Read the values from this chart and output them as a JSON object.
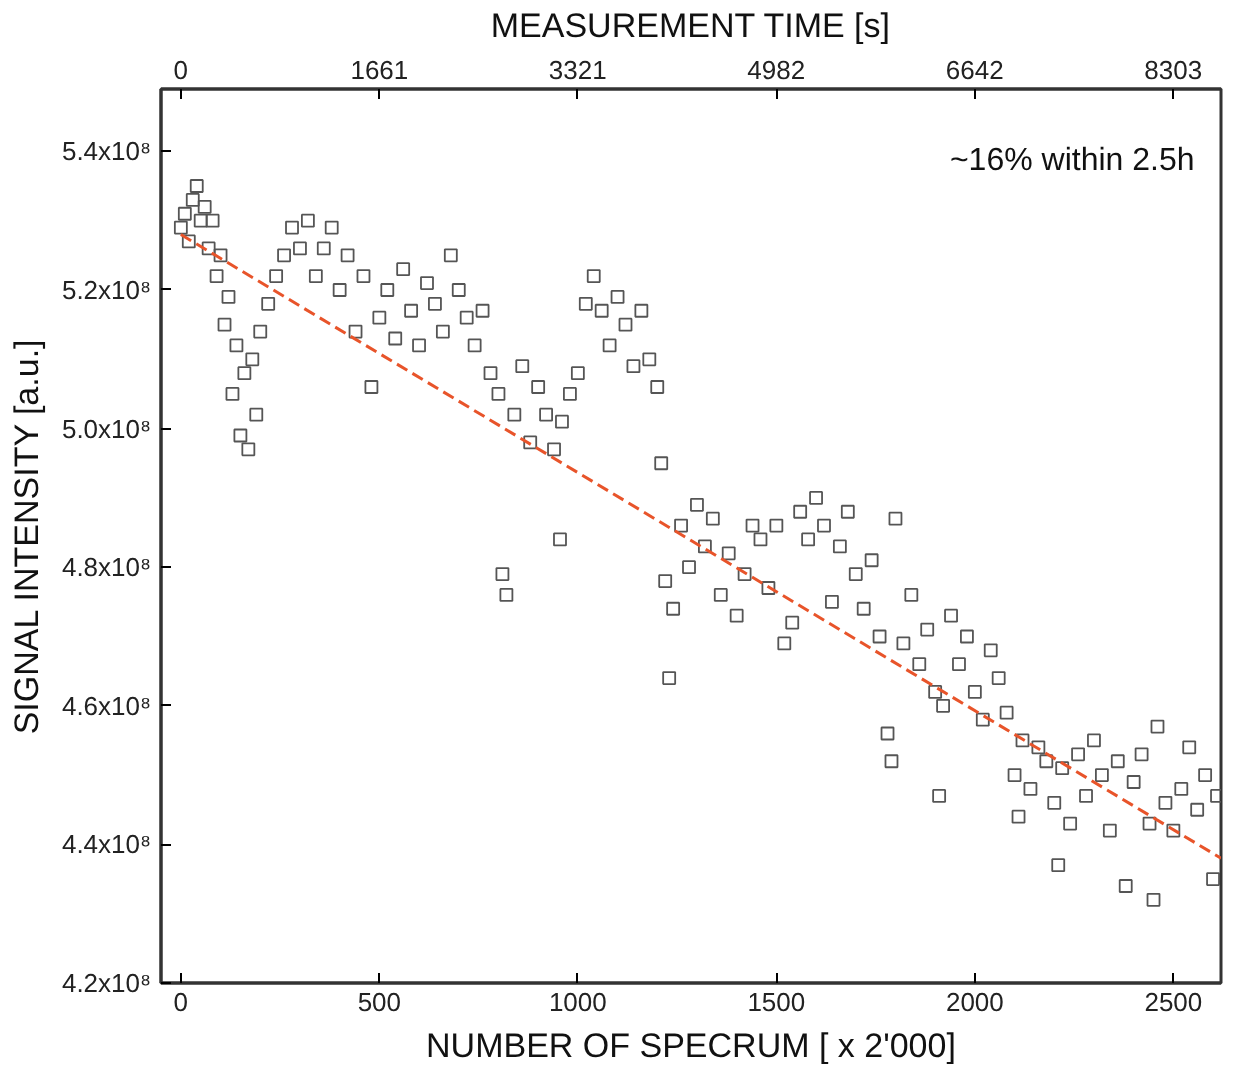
{
  "chart_data": {
    "type": "scatter",
    "xlabel": "NUMBER OF SPECRUM [ x 2'000]",
    "ylabel": "SIGNAL INTENSITY [a.u.]",
    "x2label": "MEASUREMENT TIME [s]",
    "annotations": [
      "~16% within 2.5h"
    ],
    "xlim": [
      -50,
      2620
    ],
    "xticks": [
      0,
      500,
      1000,
      1500,
      2000,
      2500
    ],
    "x2lim": [
      -166,
      8703
    ],
    "x2ticks": [
      0,
      1661,
      3321,
      4982,
      6642,
      8303
    ],
    "ylim": [
      420000000,
      549000000
    ],
    "yticks": [
      {
        "value": 420000000,
        "label": "4.2x10⁸"
      },
      {
        "value": 440000000,
        "label": "4.4x10⁸"
      },
      {
        "value": 460000000,
        "label": "4.6x10⁸"
      },
      {
        "value": 480000000,
        "label": "4.8x10⁸"
      },
      {
        "value": 500000000,
        "label": "5.0x10⁸"
      },
      {
        "value": 520000000,
        "label": "5.2x10⁸"
      },
      {
        "value": 540000000,
        "label": "5.4x10⁸"
      }
    ],
    "grid": false,
    "series": [
      {
        "color": "#555555",
        "marker": "square",
        "x": [
          0,
          10,
          20,
          30,
          40,
          50,
          60,
          70,
          80,
          90,
          100,
          110,
          120,
          130,
          140,
          150,
          160,
          170,
          180,
          190,
          200,
          220,
          240,
          260,
          280,
          300,
          320,
          340,
          360,
          380,
          400,
          420,
          440,
          460,
          480,
          500,
          520,
          540,
          560,
          580,
          600,
          620,
          640,
          660,
          680,
          700,
          720,
          740,
          760,
          780,
          800,
          810,
          820,
          840,
          860,
          880,
          900,
          920,
          940,
          955,
          960,
          980,
          1000,
          1020,
          1040,
          1060,
          1080,
          1100,
          1120,
          1140,
          1160,
          1180,
          1200,
          1210,
          1220,
          1230,
          1240,
          1260,
          1280,
          1300,
          1320,
          1340,
          1360,
          1380,
          1400,
          1420,
          1440,
          1460,
          1480,
          1500,
          1520,
          1540,
          1560,
          1580,
          1600,
          1620,
          1640,
          1660,
          1680,
          1700,
          1720,
          1740,
          1760,
          1780,
          1790,
          1800,
          1820,
          1840,
          1860,
          1880,
          1900,
          1910,
          1920,
          1940,
          1960,
          1980,
          2000,
          2020,
          2040,
          2060,
          2080,
          2100,
          2110,
          2120,
          2140,
          2160,
          2180,
          2200,
          2210,
          2220,
          2240,
          2260,
          2280,
          2300,
          2320,
          2340,
          2360,
          2380,
          2400,
          2420,
          2440,
          2450,
          2460,
          2480,
          2500,
          2520,
          2540,
          2560,
          2580,
          2600,
          2610
        ],
        "values": [
          529000000.0,
          531000000.0,
          527000000.0,
          533000000.0,
          535000000.0,
          530000000.0,
          532000000.0,
          526000000.0,
          530000000.0,
          522000000.0,
          525000000.0,
          515000000.0,
          519000000.0,
          505000000.0,
          512000000.0,
          499000000.0,
          508000000.0,
          497000000.0,
          510000000.0,
          502000000.0,
          514000000.0,
          518000000.0,
          522000000.0,
          525000000.0,
          529000000.0,
          526000000.0,
          530000000.0,
          522000000.0,
          526000000.0,
          529000000.0,
          520000000.0,
          525000000.0,
          514000000.0,
          522000000.0,
          506000000.0,
          516000000.0,
          520000000.0,
          513000000.0,
          523000000.0,
          517000000.0,
          512000000.0,
          521000000.0,
          518000000.0,
          514000000.0,
          525000000.0,
          520000000.0,
          516000000.0,
          512000000.0,
          517000000.0,
          508000000.0,
          505000000.0,
          479000000.0,
          476000000.0,
          502000000.0,
          509000000.0,
          498000000.0,
          506000000.0,
          502000000.0,
          497000000.0,
          484000000.0,
          501000000.0,
          505000000.0,
          508000000.0,
          518000000.0,
          522000000.0,
          517000000.0,
          512000000.0,
          519000000.0,
          515000000.0,
          509000000.0,
          517000000.0,
          510000000.0,
          506000000.0,
          495000000.0,
          478000000.0,
          464000000.0,
          474000000.0,
          486000000.0,
          480000000.0,
          489000000.0,
          483000000.0,
          487000000.0,
          476000000.0,
          482000000.0,
          473000000.0,
          479000000.0,
          486000000.0,
          484000000.0,
          477000000.0,
          486000000.0,
          469000000.0,
          472000000.0,
          488000000.0,
          484000000.0,
          490000000.0,
          486000000.0,
          475000000.0,
          483000000.0,
          488000000.0,
          479000000.0,
          474000000.0,
          481000000.0,
          470000000.0,
          456000000.0,
          452000000.0,
          487000000.0,
          469000000.0,
          476000000.0,
          466000000.0,
          471000000.0,
          462000000.0,
          447000000.0,
          460000000.0,
          473000000.0,
          466000000.0,
          470000000.0,
          462000000.0,
          458000000.0,
          468000000.0,
          464000000.0,
          459000000.0,
          450000000.0,
          444000000.0,
          455000000.0,
          448000000.0,
          454000000.0,
          452000000.0,
          446000000.0,
          437000000.0,
          451000000.0,
          443000000.0,
          453000000.0,
          447000000.0,
          455000000.0,
          450000000.0,
          442000000.0,
          452000000.0,
          434000000.0,
          449000000.0,
          453000000.0,
          443000000.0,
          432000000.0,
          457000000.0,
          446000000.0,
          442000000.0,
          448000000.0,
          454000000.0,
          445000000.0,
          450000000.0,
          435000000.0,
          447000000.0
        ]
      },
      {
        "type": "line",
        "color": "#e8542a",
        "line_style": "dashed",
        "x": [
          0,
          2620
        ],
        "values": [
          528000000.0,
          438000000.0
        ]
      }
    ]
  }
}
